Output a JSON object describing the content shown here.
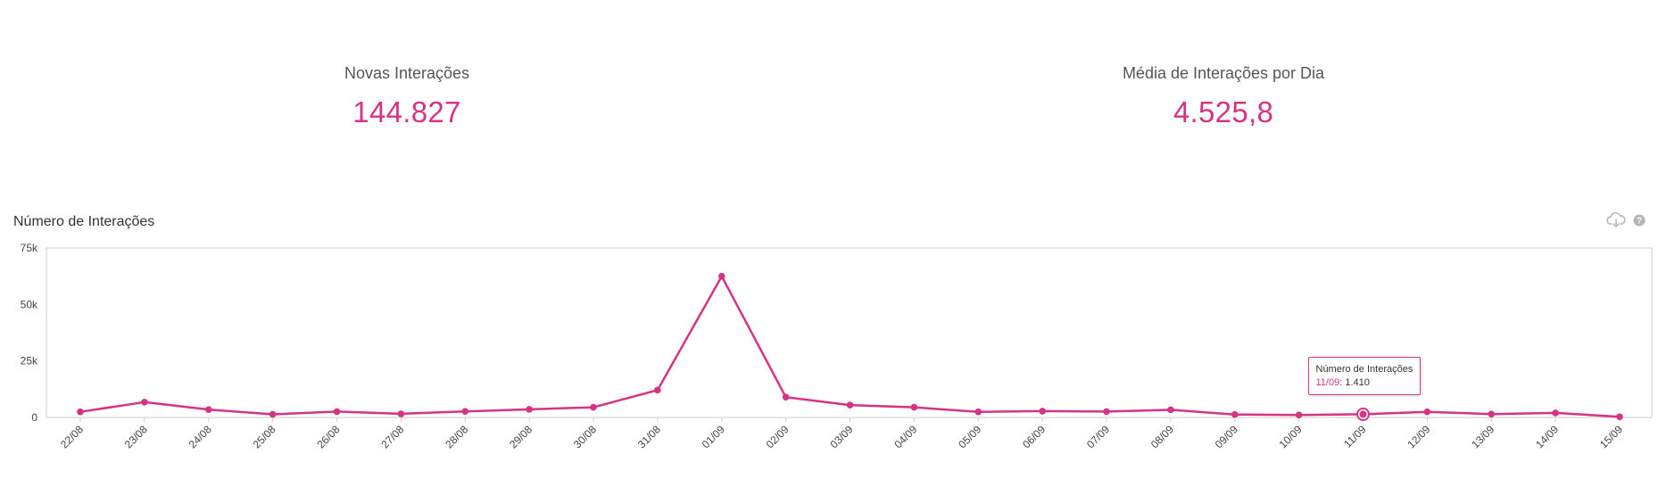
{
  "kpis": [
    {
      "label": "Novas Interações",
      "value": "144.827"
    },
    {
      "label": "Média de Interações por Dia",
      "value": "4.525,8"
    }
  ],
  "icons": {
    "download": "cloud-download-icon",
    "help": "help-circle-icon"
  },
  "colors": {
    "accent": "#d63384",
    "axis": "#cccccc",
    "text": "#444444"
  },
  "tooltip": {
    "series": "Número de Interações",
    "date": "11/09",
    "value": "1.410"
  },
  "chart_data": {
    "type": "line",
    "title": "Número de Interações",
    "xlabel": "",
    "ylabel": "",
    "ylim": [
      0,
      75000
    ],
    "y_ticks": [
      {
        "value": 0,
        "label": "0"
      },
      {
        "value": 25000,
        "label": "25k"
      },
      {
        "value": 50000,
        "label": "50k"
      },
      {
        "value": 75000,
        "label": "75k"
      }
    ],
    "grid": false,
    "categories": [
      "22/08",
      "23/08",
      "24/08",
      "25/08",
      "26/08",
      "27/08",
      "28/08",
      "29/08",
      "30/08",
      "31/08",
      "01/09",
      "02/09",
      "03/09",
      "04/09",
      "05/09",
      "06/09",
      "07/09",
      "08/09",
      "09/09",
      "10/09",
      "11/09",
      "12/09",
      "13/09",
      "14/09",
      "15/09"
    ],
    "series": [
      {
        "values": [
          2500,
          6800,
          3500,
          1400,
          2600,
          1600,
          2700,
          3600,
          4500,
          12100,
          62500,
          9000,
          5500,
          4500,
          2500,
          2800,
          2600,
          3400,
          1300,
          1100,
          1410,
          2500,
          1500,
          2000,
          300
        ]
      }
    ],
    "highlight_index": 20
  }
}
